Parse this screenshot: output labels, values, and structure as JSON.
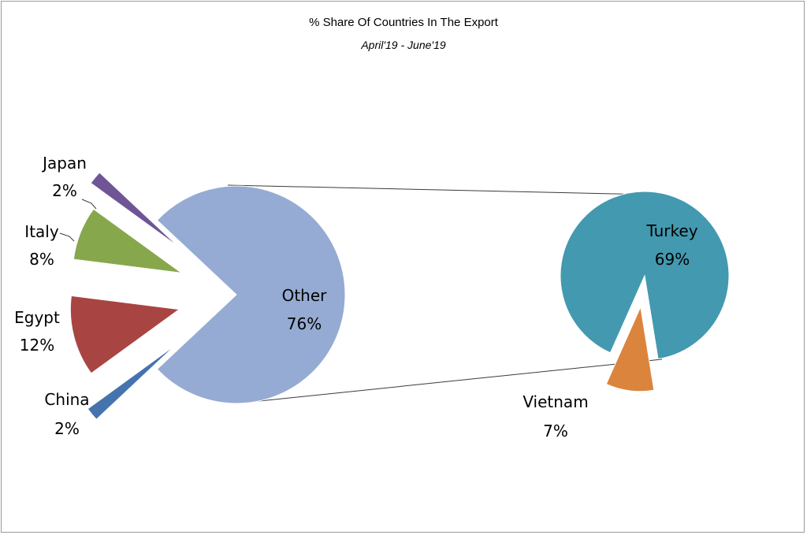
{
  "chart_data": {
    "type": "pie",
    "subtype": "pie-of-pie",
    "title": "% Share Of Countries In The Export",
    "subtitle": "April'19 - June'19",
    "main_pie": {
      "slices": [
        {
          "label": "Other",
          "value": 76,
          "display": "76%",
          "color": "#95ABD3"
        },
        {
          "label": "China",
          "value": 2,
          "display": "2%",
          "color": "#4573AE"
        },
        {
          "label": "Egypt",
          "value": 12,
          "display": "12%",
          "color": "#A84543"
        },
        {
          "label": "Italy",
          "value": 8,
          "display": "8%",
          "color": "#87A74D"
        },
        {
          "label": "Japan",
          "value": 2,
          "display": "2%",
          "color": "#6F5496"
        }
      ]
    },
    "secondary_pie": {
      "slices": [
        {
          "label": "Turkey",
          "value": 69,
          "display": "69%",
          "color": "#4399AF"
        },
        {
          "label": "Vietnam",
          "value": 7,
          "display": "7%",
          "color": "#DB843D"
        }
      ]
    }
  }
}
